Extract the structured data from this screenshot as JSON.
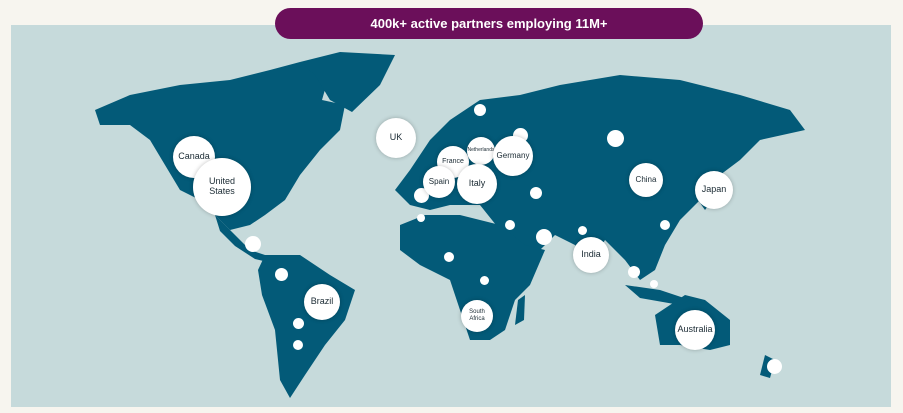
{
  "header": {
    "title": "400k+ active partners employing 11M+"
  },
  "markers": [
    {
      "label": "Canada"
    },
    {
      "label": "United States"
    },
    {
      "label": "UK"
    },
    {
      "label": "France"
    },
    {
      "label": "Netherlands"
    },
    {
      "label": "Germany"
    },
    {
      "label": "Spain"
    },
    {
      "label": "Italy"
    },
    {
      "label": "China"
    },
    {
      "label": "Japan"
    },
    {
      "label": "India"
    },
    {
      "label": "Brazil"
    },
    {
      "label": "South Africa"
    },
    {
      "label": "Australia"
    }
  ]
}
